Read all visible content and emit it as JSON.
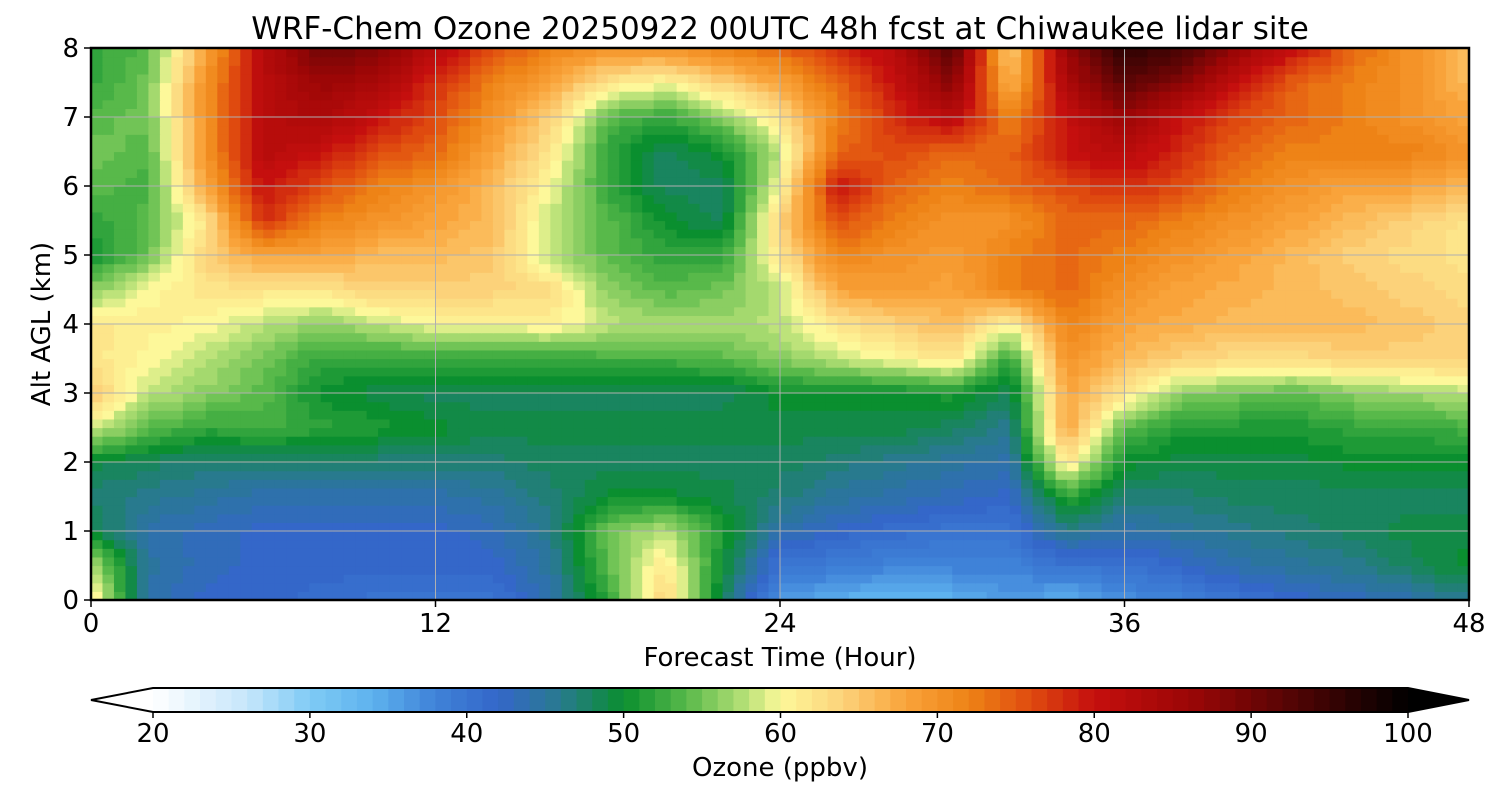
{
  "chart_data": {
    "type": "heatmap",
    "title": "WRF-Chem Ozone  20250922 00UTC 48h fcst at Chiwaukee lidar site",
    "xlabel": "Forecast Time (Hour)",
    "ylabel": "Alt AGL (km)",
    "xlim": [
      0,
      48
    ],
    "ylim": [
      0,
      8
    ],
    "xticks": [
      "0",
      "12",
      "24",
      "36",
      "48"
    ],
    "yticks": [
      "0",
      "1",
      "2",
      "3",
      "4",
      "5",
      "6",
      "7",
      "8"
    ],
    "grid": true,
    "x_hours": [
      0,
      2,
      4,
      6,
      8,
      10,
      12,
      14,
      16,
      18,
      20,
      22,
      24,
      26,
      28,
      30,
      32,
      34,
      36,
      38,
      40,
      42,
      44,
      46,
      48
    ],
    "y_km": [
      0,
      0.5,
      1,
      1.5,
      2,
      2.5,
      3,
      3.5,
      4,
      4.5,
      5,
      5.5,
      6,
      6.5,
      7,
      7.5,
      8
    ],
    "z_ozone_ppbv": [
      [
        62,
        44,
        42,
        42,
        41,
        40,
        40,
        40,
        44,
        52,
        64,
        48,
        36,
        34,
        33,
        34,
        36,
        34,
        37,
        38,
        40,
        42,
        43,
        44,
        46
      ],
      [
        58,
        45,
        43,
        42,
        42,
        42,
        42,
        42,
        45,
        54,
        62,
        50,
        40,
        39,
        38,
        38,
        38,
        40,
        40,
        42,
        44,
        45,
        46,
        48,
        50
      ],
      [
        49,
        44,
        43,
        42,
        42,
        42,
        42,
        43,
        46,
        55,
        58,
        51,
        44,
        42,
        41,
        40,
        40,
        46,
        44,
        45,
        46,
        47,
        48,
        49,
        49
      ],
      [
        47,
        46,
        45,
        44,
        44,
        44,
        44,
        45,
        47,
        50,
        50,
        49,
        47,
        45,
        44,
        43,
        42,
        52,
        47,
        47,
        48,
        48,
        48,
        48,
        48
      ],
      [
        49,
        48,
        47,
        47,
        47,
        47,
        47,
        47,
        48,
        48,
        48,
        48,
        48,
        47,
        46,
        45,
        44,
        62,
        50,
        49,
        49,
        49,
        50,
        50,
        50
      ],
      [
        59,
        54,
        52,
        53,
        52,
        51,
        50,
        49,
        49,
        49,
        49,
        49,
        49,
        49,
        49,
        48,
        46,
        68,
        54,
        51,
        51,
        51,
        52,
        52,
        53
      ],
      [
        65,
        58,
        56,
        54,
        50,
        49,
        48,
        48,
        48,
        48,
        48,
        48,
        50,
        50,
        50,
        51,
        48,
        68,
        62,
        56,
        55,
        54,
        56,
        57,
        58
      ],
      [
        62,
        60,
        58,
        55,
        52,
        52,
        52,
        52,
        52,
        53,
        53,
        54,
        56,
        58,
        60,
        62,
        52,
        70,
        66,
        64,
        63,
        63,
        64,
        64,
        64
      ],
      [
        62,
        61,
        60,
        58,
        56,
        58,
        60,
        60,
        61,
        58,
        57,
        57,
        58,
        62,
        64,
        66,
        60,
        72,
        68,
        67,
        66,
        66,
        66,
        65,
        64
      ],
      [
        56,
        60,
        62,
        62,
        62,
        64,
        64,
        64,
        63,
        56,
        54,
        55,
        58,
        68,
        69,
        68,
        72,
        74,
        70,
        68,
        67,
        66,
        65,
        64,
        63
      ],
      [
        50,
        55,
        64,
        68,
        68,
        66,
        66,
        65,
        58,
        54,
        52,
        52,
        62,
        72,
        70,
        69,
        72,
        74,
        72,
        70,
        68,
        66,
        64,
        63,
        62
      ],
      [
        52,
        54,
        62,
        78,
        72,
        70,
        68,
        66,
        58,
        54,
        50,
        48,
        64,
        76,
        72,
        70,
        70,
        74,
        74,
        72,
        70,
        68,
        66,
        64,
        62
      ],
      [
        54,
        53,
        68,
        80,
        76,
        72,
        70,
        66,
        60,
        52,
        48,
        48,
        60,
        80,
        74,
        72,
        74,
        76,
        78,
        76,
        72,
        70,
        68,
        68,
        66
      ],
      [
        55,
        54,
        70,
        82,
        80,
        76,
        74,
        68,
        62,
        52,
        48,
        50,
        58,
        74,
        76,
        74,
        74,
        80,
        82,
        78,
        74,
        72,
        72,
        72,
        70
      ],
      [
        54,
        55,
        70,
        82,
        84,
        80,
        76,
        70,
        64,
        54,
        52,
        56,
        62,
        72,
        78,
        82,
        72,
        80,
        86,
        80,
        76,
        74,
        72,
        70,
        68
      ],
      [
        52,
        55,
        70,
        82,
        86,
        84,
        78,
        72,
        68,
        62,
        60,
        64,
        68,
        74,
        80,
        88,
        66,
        84,
        92,
        88,
        80,
        74,
        72,
        70,
        66
      ],
      [
        52,
        54,
        68,
        82,
        90,
        88,
        82,
        76,
        72,
        70,
        70,
        72,
        74,
        78,
        82,
        92,
        64,
        86,
        96,
        94,
        86,
        80,
        74,
        70,
        66
      ]
    ],
    "colorbar": {
      "label": "Ozone  (ppbv)",
      "min": 20,
      "max": 100,
      "step": 1,
      "ticks": [
        "20",
        "30",
        "40",
        "50",
        "60",
        "70",
        "80",
        "90",
        "100"
      ],
      "extend": "both"
    },
    "colormap": [
      [
        20,
        "#ffffff"
      ],
      [
        26,
        "#c6e6fb"
      ],
      [
        30,
        "#7fcbf5"
      ],
      [
        34,
        "#5eb2ee"
      ],
      [
        38,
        "#3f82d8"
      ],
      [
        42,
        "#3467c9"
      ],
      [
        46,
        "#287a8e"
      ],
      [
        50,
        "#0a8f2f"
      ],
      [
        54,
        "#58b94a"
      ],
      [
        58,
        "#bde37a"
      ],
      [
        60,
        "#fdf89a"
      ],
      [
        64,
        "#fcd27a"
      ],
      [
        68,
        "#f9a33a"
      ],
      [
        72,
        "#ee8316"
      ],
      [
        76,
        "#df4a0f"
      ],
      [
        80,
        "#c50f0e"
      ],
      [
        86,
        "#9c0606"
      ],
      [
        92,
        "#5a0505"
      ],
      [
        100,
        "#000000"
      ]
    ]
  }
}
